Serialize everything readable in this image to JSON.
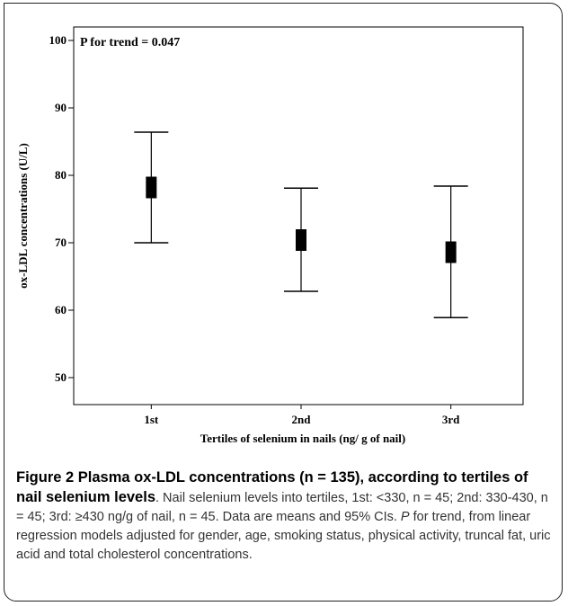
{
  "chart_data": {
    "type": "errorbar",
    "title": "",
    "xlabel": "Tertiles of selenium in nails (ng/ g of nail)",
    "ylabel": "ox-LDL concentrations (U/L)",
    "ylim": [
      46,
      102
    ],
    "yticks": [
      50,
      60,
      70,
      80,
      90,
      100
    ],
    "categories": [
      "1st",
      "2nd",
      "3rd"
    ],
    "series": [
      {
        "mean": [
          78.2,
          70.4,
          68.6
        ],
        "lower": [
          70.0,
          62.8,
          58.9
        ],
        "upper": [
          86.4,
          78.1,
          78.4
        ]
      }
    ],
    "annotation": "P for trend = 0.047",
    "grid": false
  },
  "caption": {
    "lead": "Figure 2 Plasma ox-LDL concentrations (n = 135), according to tertiles of nail selenium levels",
    "body_1": ". Nail selenium levels into tertiles, 1st: <330, n = 45; 2nd: 330-430, n = 45; 3rd: ≥430 ng/g of nail, n = 45. Data are means and 95% CIs. ",
    "p_italic": "P",
    "body_2": " for trend, from linear regression models adjusted for gender, age, smoking status, physical activity, truncal fat, uric acid and total cholesterol concentrations."
  }
}
